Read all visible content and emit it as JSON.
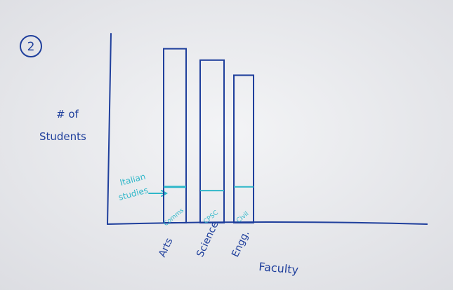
{
  "figure_number": "2",
  "colors": {
    "paper": "#f2f3f5",
    "ink": "#1f3f9c",
    "highlight": "#2fb7c9"
  },
  "chart_data": {
    "type": "bar",
    "title": "",
    "xlabel": "Faculty",
    "ylabel_line1": "# of",
    "ylabel_line2": "Students",
    "ylim": [
      0,
      100
    ],
    "categories": [
      "Arts",
      "Science",
      "Engg."
    ],
    "series": [
      {
        "values": [
          92,
          86,
          78
        ]
      },
      {
        "values": [
          19,
          17,
          19
        ]
      }
    ],
    "segment_labels": [
      "Comms",
      "CPSC",
      "Civil"
    ],
    "annotation_line1": "Italian",
    "annotation_line2": "studies"
  }
}
